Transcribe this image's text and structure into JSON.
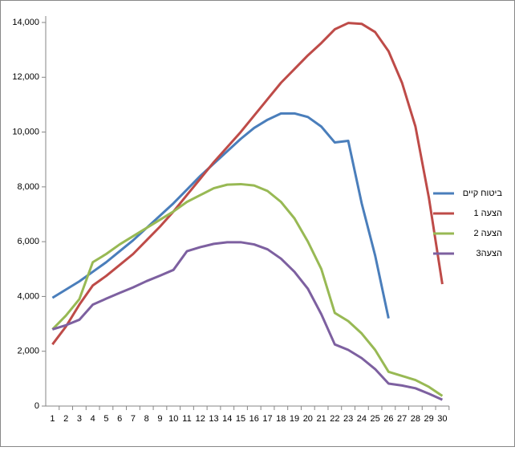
{
  "chart_data": {
    "type": "line",
    "categories": [
      "1",
      "2",
      "3",
      "4",
      "5",
      "6",
      "7",
      "8",
      "9",
      "10",
      "11",
      "12",
      "13",
      "14",
      "15",
      "16",
      "17",
      "18",
      "19",
      "20",
      "21",
      "22",
      "23",
      "24",
      "25",
      "26",
      "27",
      "28",
      "29",
      "30"
    ],
    "series": [
      {
        "name": "ביטוח קיים",
        "color": "#4a7ebb",
        "values": [
          3950,
          4250,
          4550,
          4900,
          5250,
          5650,
          6050,
          6500,
          6950,
          7400,
          7900,
          8400,
          8850,
          9300,
          9750,
          10150,
          10450,
          10680,
          10680,
          10550,
          10200,
          9620,
          9680,
          7400,
          5500,
          3200,
          null,
          null,
          null,
          null
        ]
      },
      {
        "name": "הצעה 1",
        "color": "#be4b48",
        "values": [
          2250,
          2900,
          3700,
          4400,
          4750,
          5150,
          5550,
          6050,
          6550,
          7100,
          7700,
          8300,
          8900,
          9450,
          10000,
          10600,
          11200,
          11800,
          12300,
          12800,
          13250,
          13750,
          13980,
          13950,
          13650,
          12950,
          11800,
          10200,
          7600,
          4450
        ]
      },
      {
        "name": "הצעה 2",
        "color": "#98b954",
        "values": [
          2800,
          3300,
          3900,
          5250,
          5550,
          5900,
          6200,
          6500,
          6800,
          7100,
          7450,
          7700,
          7950,
          8080,
          8100,
          8050,
          7850,
          7450,
          6850,
          6000,
          5000,
          3400,
          3100,
          2650,
          2050,
          1250,
          1100,
          950,
          700,
          370
        ]
      },
      {
        "name": "הצעה3",
        "color": "#7d60a0",
        "values": [
          2800,
          2950,
          3150,
          3700,
          3920,
          4130,
          4330,
          4560,
          4760,
          4970,
          5650,
          5800,
          5920,
          5980,
          5980,
          5900,
          5720,
          5380,
          4900,
          4280,
          3350,
          2250,
          2050,
          1750,
          1350,
          820,
          750,
          650,
          450,
          230
        ]
      }
    ],
    "ylim": [
      0,
      14000
    ],
    "yticks": [
      0,
      {
        "value": 2000,
        "label": "2,000"
      },
      {
        "value": 4000,
        "label": "4,000"
      },
      {
        "value": 6000,
        "label": "6,000"
      },
      {
        "value": 8000,
        "label": "8,000"
      },
      {
        "value": 10000,
        "label": "10,000"
      },
      {
        "value": 12000,
        "label": "12,000"
      },
      {
        "value": 14000,
        "label": "14,000"
      }
    ],
    "legend": "right"
  }
}
